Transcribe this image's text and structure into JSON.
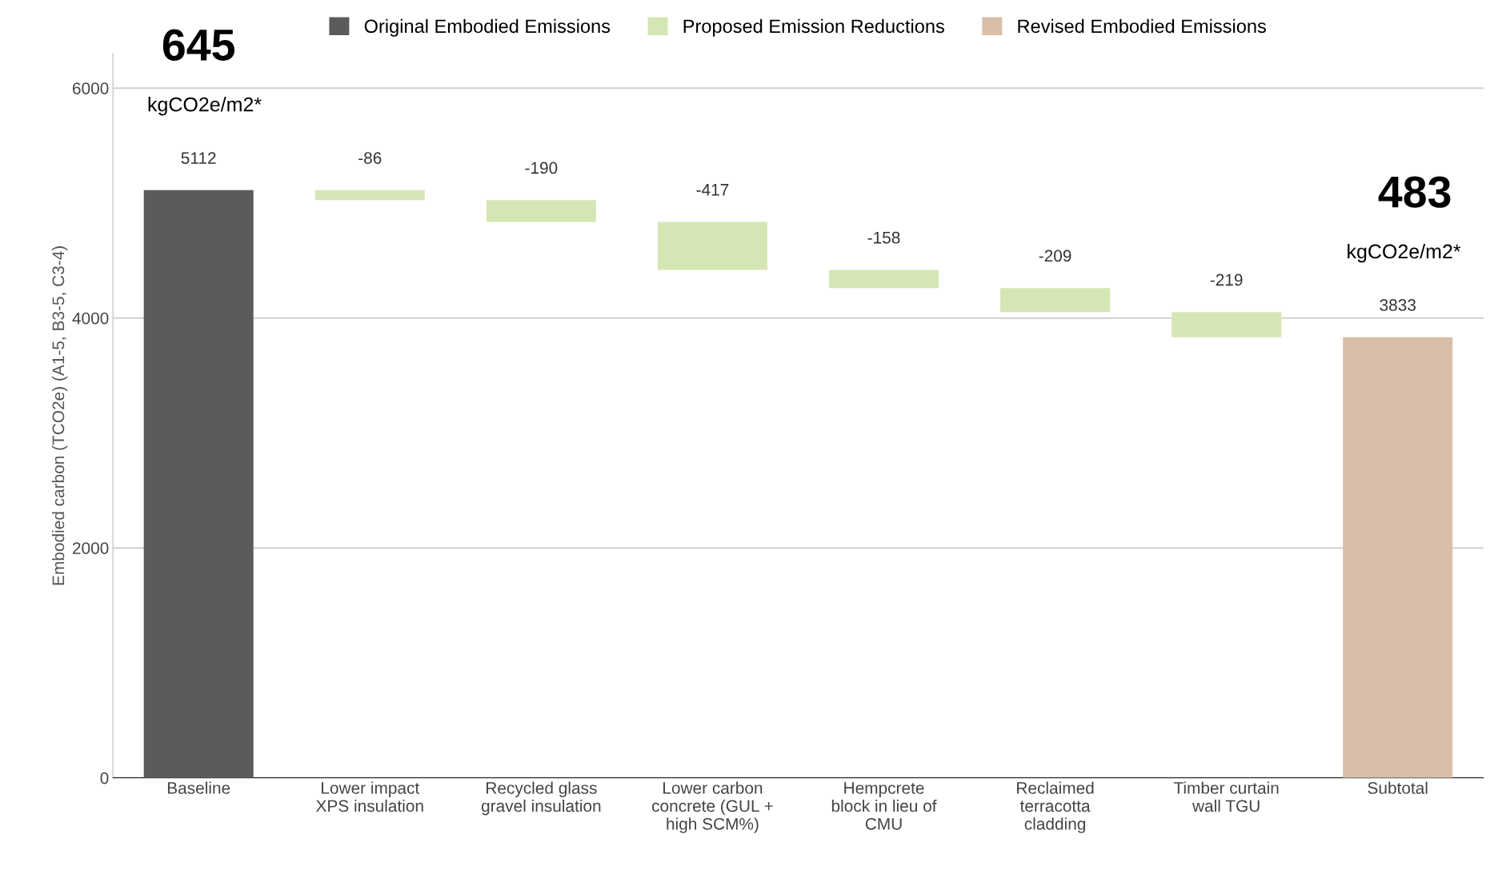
{
  "chart_data": {
    "type": "bar",
    "categories": [
      "Baseline",
      "Lower impact\nXPS insulation",
      "Recycled glass\ngravel insulation",
      "Lower carbon\nconcrete (GUL +\nhigh SCM%)",
      "Hempcrete\nblock in lieu of\nCMU",
      "Reclaimed\nterracotta\ncladding",
      "Timber curtain\nwall TGU",
      "Subtotal"
    ],
    "series": [
      {
        "name": "Original Embodied Emissions",
        "color": "#5b5b5b",
        "values": [
          5112,
          null,
          null,
          null,
          null,
          null,
          null,
          null
        ],
        "base": [
          0,
          null,
          null,
          null,
          null,
          null,
          null,
          null
        ]
      },
      {
        "name": "Proposed Emission Reductions",
        "color": "#d5e6b5",
        "values": [
          null,
          -86,
          -190,
          -417,
          -158,
          -209,
          -219,
          null
        ],
        "base": [
          null,
          5112,
          5026,
          4836,
          4419,
          4261,
          4052,
          null
        ]
      },
      {
        "name": "Revised Embodied Emissions",
        "color": "#d7bfaa",
        "values": [
          null,
          null,
          null,
          null,
          null,
          null,
          null,
          3833
        ],
        "base": [
          null,
          null,
          null,
          null,
          null,
          null,
          null,
          0
        ]
      }
    ],
    "ylabel": "Embodied carbon (TCO2e) (A1-5, B3-5, C3-4)",
    "ylim": [
      0,
      6300
    ],
    "yticks": [
      0,
      2000,
      4000,
      6000
    ],
    "grid": "y",
    "legend": "top",
    "data_labels": true,
    "annotations": [
      "645",
      "kgCO2e/m2*",
      "483",
      "kgCO2e/m2*"
    ]
  }
}
